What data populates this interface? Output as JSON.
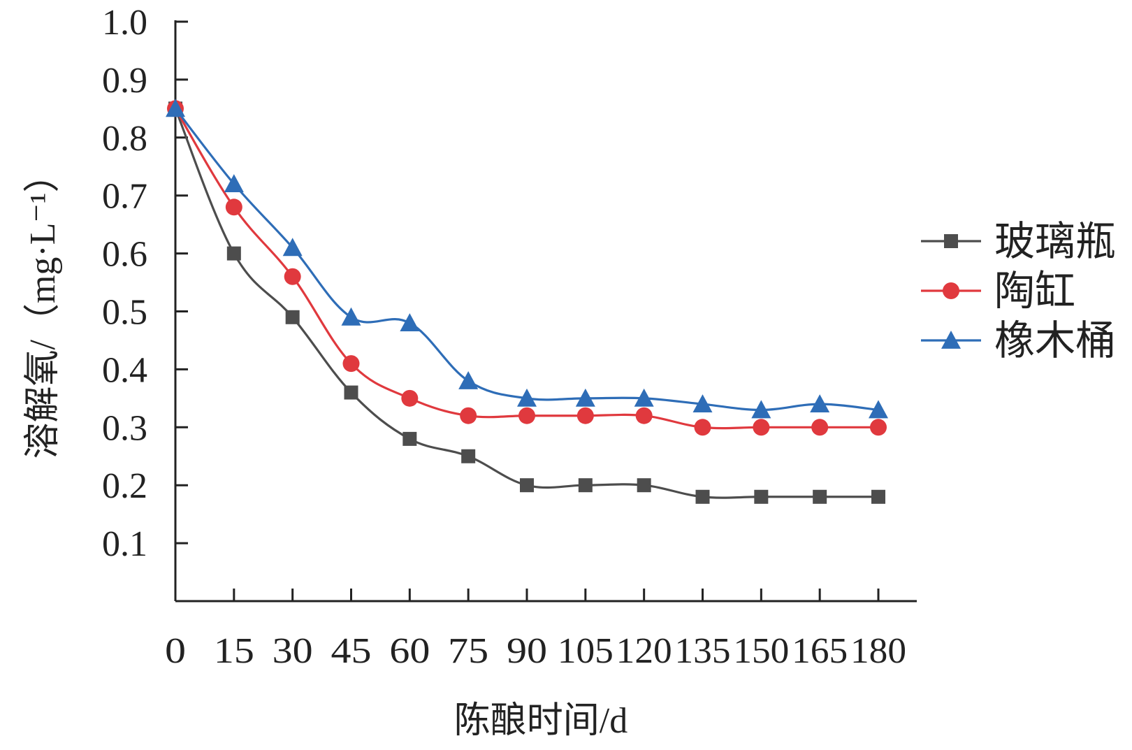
{
  "chart_data": {
    "type": "line",
    "title": "",
    "xlabel": "陈酿时间/d",
    "ylabel": "溶解氧/（mg·L⁻¹）",
    "ylim": [
      0.0,
      1.0
    ],
    "yticks": [
      "0.1",
      "0.2",
      "0.3",
      "0.4",
      "0.5",
      "0.6",
      "0.7",
      "0.8",
      "0.9",
      "1.0"
    ],
    "categories": [
      "0",
      "15",
      "30",
      "45",
      "60",
      "75",
      "90",
      "105",
      "120",
      "135",
      "150",
      "165",
      "180"
    ],
    "grid": false,
    "legend_position": "right",
    "series": [
      {
        "name": "玻璃瓶",
        "color": "#4d4d4d",
        "marker": "square",
        "values": [
          0.85,
          0.6,
          0.49,
          0.36,
          0.28,
          0.25,
          0.2,
          0.2,
          0.2,
          0.18,
          0.18,
          0.18,
          0.18
        ]
      },
      {
        "name": "陶缸",
        "color": "#e0393e",
        "marker": "circle",
        "values": [
          0.85,
          0.68,
          0.56,
          0.41,
          0.35,
          0.32,
          0.32,
          0.32,
          0.32,
          0.3,
          0.3,
          0.3,
          0.3
        ]
      },
      {
        "name": "橡木桶",
        "color": "#2e6db7",
        "marker": "triangle",
        "values": [
          0.85,
          0.72,
          0.61,
          0.49,
          0.48,
          0.38,
          0.35,
          0.35,
          0.35,
          0.34,
          0.33,
          0.34,
          0.33
        ]
      }
    ]
  }
}
